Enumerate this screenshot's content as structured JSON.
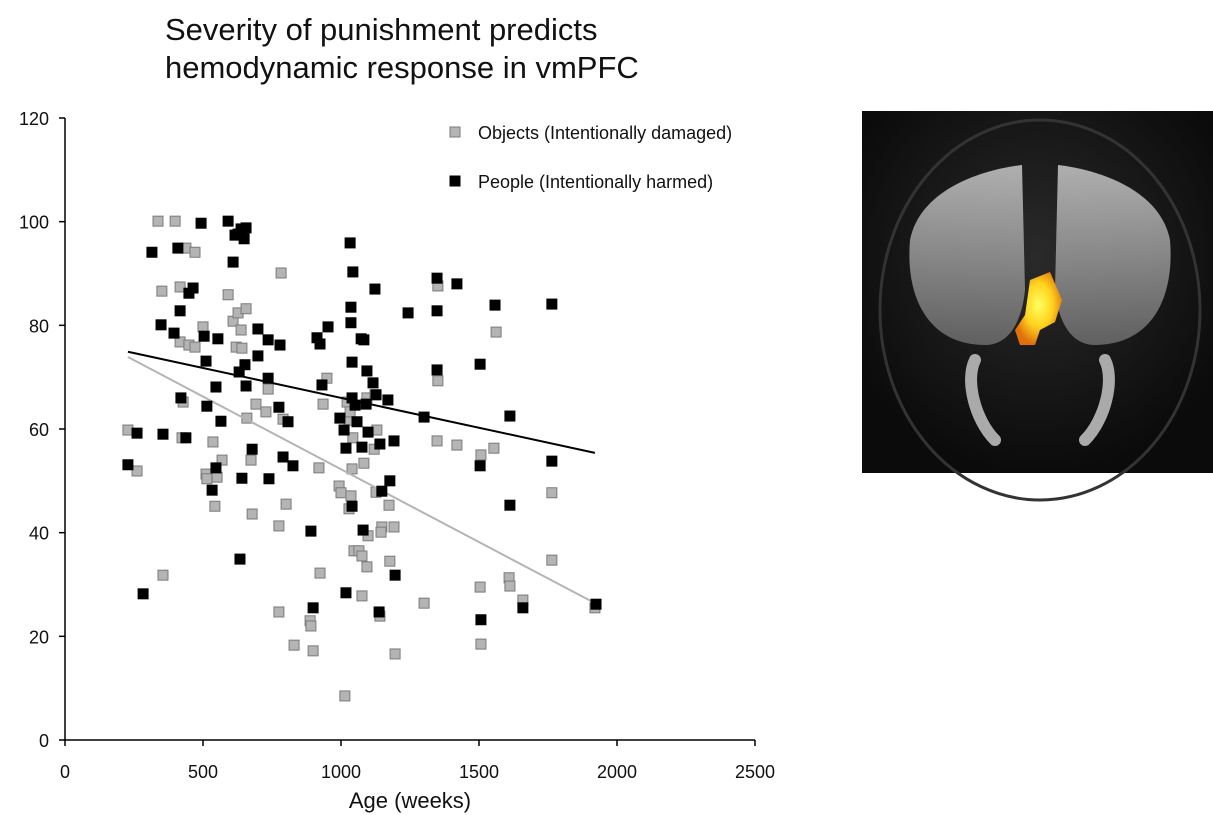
{
  "chart_data": {
    "type": "scatter",
    "title": [
      "Severity of punishment predicts",
      "hemodynamic response in vmPFC"
    ],
    "x_label": "Age (weeks)",
    "xlim": [
      0,
      2500
    ],
    "xticks": [
      0,
      500,
      1000,
      1500,
      2000,
      2500
    ],
    "ylim": [
      0,
      120
    ],
    "yticks": [
      0,
      20,
      40,
      60,
      80,
      100,
      120
    ],
    "legend": "top-right",
    "series": [
      {
        "name": "Objects (Intentionally damaged)",
        "color": "#b4b4b4",
        "x": [
          228,
          261,
          337,
          351,
          355,
          399,
          417,
          417,
          428,
          424,
          438,
          449,
          471,
          471,
          500,
          511,
          514,
          536,
          543,
          551,
          569,
          591,
          609,
          620,
          627,
          638,
          641,
          656,
          659,
          674,
          678,
          692,
          728,
          736,
          775,
          775,
          783,
          790,
          801,
          830,
          888,
          891,
          899,
          924,
          920,
          935,
          949,
          993,
          1000,
          1014,
          1022,
          1029,
          1033,
          1029,
          1036,
          1040,
          1043,
          1047,
          1065,
          1076,
          1076,
          1083,
          1094,
          1098,
          1094,
          1120,
          1123,
          1130,
          1127,
          1141,
          1148,
          1145,
          1177,
          1174,
          1192,
          1196,
          1301,
          1348,
          1351,
          1351,
          1420,
          1504,
          1507,
          1507,
          1554,
          1562,
          1609,
          1612,
          1659,
          1764,
          1764,
          1920
        ],
        "values": [
          59.8,
          51.9,
          100.1,
          86.6,
          31.8,
          100.1,
          87.4,
          76.8,
          65.2,
          58.3,
          94.9,
          76.2,
          94.1,
          75.8,
          79.7,
          51.3,
          50.4,
          57.5,
          45.1,
          50.7,
          54.0,
          85.9,
          80.8,
          75.8,
          82.4,
          79.1,
          75.6,
          83.2,
          62.1,
          54.0,
          43.6,
          64.8,
          63.3,
          67.7,
          41.3,
          24.7,
          90.1,
          61.9,
          45.5,
          18.3,
          23.0,
          22.0,
          17.2,
          32.2,
          52.5,
          64.8,
          69.8,
          49.0,
          47.7,
          8.5,
          65.2,
          61.7,
          63.3,
          44.6,
          47.1,
          52.3,
          58.3,
          36.5,
          36.5,
          27.8,
          35.5,
          53.4,
          33.4,
          39.4,
          66.0,
          56.1,
          66.6,
          59.8,
          47.8,
          23.9,
          41.1,
          40.1,
          34.5,
          45.3,
          41.1,
          16.6,
          26.4,
          57.7,
          87.6,
          69.3,
          56.9,
          29.5,
          55.0,
          18.5,
          56.3,
          78.7,
          31.3,
          29.7,
          27.0,
          47.7,
          34.7,
          25.5
        ],
        "trend_x": [
          228,
          1920
        ],
        "trend_y": [
          73.9,
          26.4
        ],
        "trend_color": "#b4b4b4"
      },
      {
        "name": "People (Intentionally harmed)",
        "color": "#000000",
        "x": [
          228,
          261,
          283,
          315,
          348,
          355,
          395,
          409,
          417,
          420,
          438,
          449,
          464,
          493,
          504,
          511,
          514,
          533,
          547,
          547,
          554,
          565,
          591,
          609,
          616,
          627,
          638,
          649,
          656,
          631,
          652,
          656,
          634,
          641,
          678,
          699,
          699,
          736,
          736,
          739,
          775,
          779,
          790,
          808,
          826,
          891,
          899,
          913,
          924,
          931,
          953,
          996,
          1011,
          1018,
          1018,
          1033,
          1036,
          1036,
          1040,
          1043,
          1040,
          1040,
          1051,
          1058,
          1073,
          1076,
          1083,
          1080,
          1091,
          1094,
          1098,
          1116,
          1123,
          1127,
          1138,
          1141,
          1148,
          1170,
          1177,
          1192,
          1196,
          1243,
          1301,
          1348,
          1348,
          1348,
          1420,
          1504,
          1504,
          1507,
          1558,
          1612,
          1612,
          1659,
          1764,
          1764,
          1924
        ],
        "values": [
          53.1,
          59.2,
          28.2,
          94.1,
          80.1,
          59.0,
          78.5,
          94.9,
          82.8,
          66.0,
          58.3,
          86.2,
          87.2,
          99.7,
          77.9,
          73.1,
          64.4,
          48.2,
          68.1,
          52.5,
          77.4,
          61.5,
          100.1,
          92.2,
          97.4,
          97.6,
          98.6,
          96.7,
          98.8,
          71.0,
          72.4,
          68.3,
          34.9,
          50.5,
          56.1,
          79.3,
          74.1,
          77.2,
          69.8,
          50.4,
          64.2,
          76.2,
          54.6,
          61.4,
          52.9,
          40.3,
          25.5,
          77.6,
          76.4,
          68.5,
          79.7,
          62.1,
          59.8,
          28.4,
          56.3,
          95.9,
          83.5,
          80.5,
          72.9,
          90.3,
          66.0,
          45.1,
          64.6,
          61.4,
          77.4,
          56.5,
          77.2,
          40.5,
          64.8,
          71.2,
          59.4,
          68.9,
          87.0,
          66.6,
          24.7,
          57.1,
          48.0,
          65.6,
          50.0,
          57.7,
          31.8,
          82.4,
          62.3,
          89.1,
          82.8,
          71.4,
          88.0,
          72.5,
          52.9,
          23.2,
          83.9,
          62.5,
          45.3,
          25.5,
          84.1,
          53.8,
          26.2
        ],
        "trend_x": [
          228,
          1920
        ],
        "trend_y": [
          74.9,
          55.4
        ],
        "trend_color": "#000000"
      }
    ]
  }
}
